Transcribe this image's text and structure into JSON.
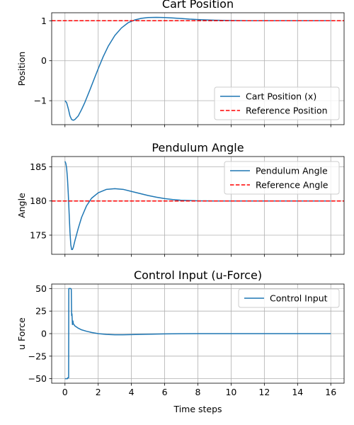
{
  "chart_data": [
    {
      "type": "line",
      "title": "Cart Position",
      "xlabel": "",
      "ylabel": "Position",
      "xlim": [
        -0.8,
        16.8
      ],
      "ylim": [
        -1.6,
        1.2
      ],
      "x_ticks": [
        0,
        2,
        4,
        6,
        8,
        10,
        12,
        14,
        16
      ],
      "y_ticks": [
        -1,
        0,
        1
      ],
      "y_tick_labels": [
        "−1",
        "0",
        "1"
      ],
      "show_x_tick_labels": false,
      "grid": true,
      "legend": "lower-right",
      "series": [
        {
          "name": "Cart Position (x)",
          "color": "#1f77b4",
          "style": "solid",
          "x": [
            0,
            0.1,
            0.2,
            0.3,
            0.4,
            0.5,
            0.6,
            0.8,
            1.0,
            1.2,
            1.5,
            1.8,
            2.0,
            2.3,
            2.6,
            3.0,
            3.4,
            3.8,
            4.2,
            4.6,
            5.0,
            5.5,
            6.0,
            6.5,
            7.0,
            7.5,
            8.0,
            9.0,
            10.0,
            11.0,
            12.0,
            13.0,
            14.0,
            15.0,
            16.0
          ],
          "y": [
            -1.0,
            -1.05,
            -1.2,
            -1.38,
            -1.47,
            -1.49,
            -1.47,
            -1.38,
            -1.22,
            -1.04,
            -0.73,
            -0.41,
            -0.2,
            0.1,
            0.36,
            0.63,
            0.82,
            0.95,
            1.02,
            1.06,
            1.08,
            1.085,
            1.08,
            1.07,
            1.055,
            1.04,
            1.03,
            1.015,
            1.005,
            1.0,
            1.0,
            1.0,
            1.0,
            1.0,
            1.0
          ]
        },
        {
          "name": "Reference Position",
          "color": "#ff0000",
          "style": "dashed",
          "x": [
            -0.8,
            16.8
          ],
          "y": [
            1,
            1
          ]
        }
      ]
    },
    {
      "type": "line",
      "title": "Pendulum Angle",
      "xlabel": "",
      "ylabel": "Angle",
      "xlim": [
        -0.8,
        16.8
      ],
      "ylim": [
        172.2,
        186.5
      ],
      "x_ticks": [
        0,
        2,
        4,
        6,
        8,
        10,
        12,
        14,
        16
      ],
      "y_ticks": [
        175,
        180,
        185
      ],
      "y_tick_labels": [
        "175",
        "180",
        "185"
      ],
      "show_x_tick_labels": false,
      "grid": true,
      "legend": "upper-right",
      "series": [
        {
          "name": "Pendulum Angle",
          "color": "#1f77b4",
          "style": "solid",
          "x": [
            0,
            0.05,
            0.1,
            0.15,
            0.2,
            0.25,
            0.3,
            0.35,
            0.4,
            0.45,
            0.5,
            0.6,
            0.8,
            1.0,
            1.3,
            1.6,
            2.0,
            2.5,
            3.0,
            3.5,
            4.0,
            4.5,
            5.0,
            5.5,
            6.0,
            6.5,
            7.0,
            8.0,
            9.0,
            10.0,
            12.0,
            14.0,
            16.0
          ],
          "y": [
            185.8,
            185.5,
            184.8,
            183.3,
            181.0,
            178.2,
            175.5,
            173.6,
            172.9,
            172.9,
            173.2,
            174.2,
            176.0,
            177.6,
            179.3,
            180.4,
            181.2,
            181.7,
            181.8,
            181.7,
            181.4,
            181.1,
            180.8,
            180.55,
            180.35,
            180.2,
            180.1,
            180.02,
            180.0,
            180.0,
            180.0,
            180.0,
            180.0
          ]
        },
        {
          "name": "Reference Angle",
          "color": "#ff0000",
          "style": "dashed",
          "x": [
            -0.8,
            16.8
          ],
          "y": [
            180,
            180
          ]
        }
      ]
    },
    {
      "type": "line",
      "title": "Control Input (u-Force)",
      "xlabel": "Time steps",
      "ylabel": "u Force",
      "xlim": [
        -0.8,
        16.8
      ],
      "ylim": [
        -55,
        55
      ],
      "x_ticks": [
        0,
        2,
        4,
        6,
        8,
        10,
        12,
        14,
        16
      ],
      "x_tick_labels": [
        "0",
        "2",
        "4",
        "6",
        "8",
        "10",
        "12",
        "14",
        "16"
      ],
      "y_ticks": [
        -50,
        -25,
        0,
        25,
        50
      ],
      "y_tick_labels": [
        "−50",
        "−25",
        "0",
        "25",
        "50"
      ],
      "show_x_tick_labels": true,
      "grid": true,
      "legend": "upper-right",
      "series": [
        {
          "name": "Control Input",
          "color": "#1f77b4",
          "style": "solid",
          "x": [
            0,
            0.15,
            0.16,
            0.22,
            0.23,
            0.35,
            0.38,
            0.4,
            0.42,
            0.45,
            0.48,
            0.5,
            0.6,
            0.8,
            1.0,
            1.3,
            1.6,
            2.0,
            2.5,
            3.0,
            3.5,
            4.0,
            5.0,
            6.0,
            7.0,
            8.0,
            10.0,
            12.0,
            14.0,
            16.0
          ],
          "y": [
            -50,
            -50,
            -49,
            -49,
            50,
            50,
            49,
            20,
            22,
            10,
            14,
            11,
            8.5,
            6,
            4.2,
            2.6,
            1.3,
            0.0,
            -0.9,
            -1.3,
            -1.3,
            -1.1,
            -0.7,
            -0.3,
            -0.1,
            0.0,
            0.0,
            0.0,
            0.0,
            0.0
          ]
        }
      ]
    }
  ]
}
